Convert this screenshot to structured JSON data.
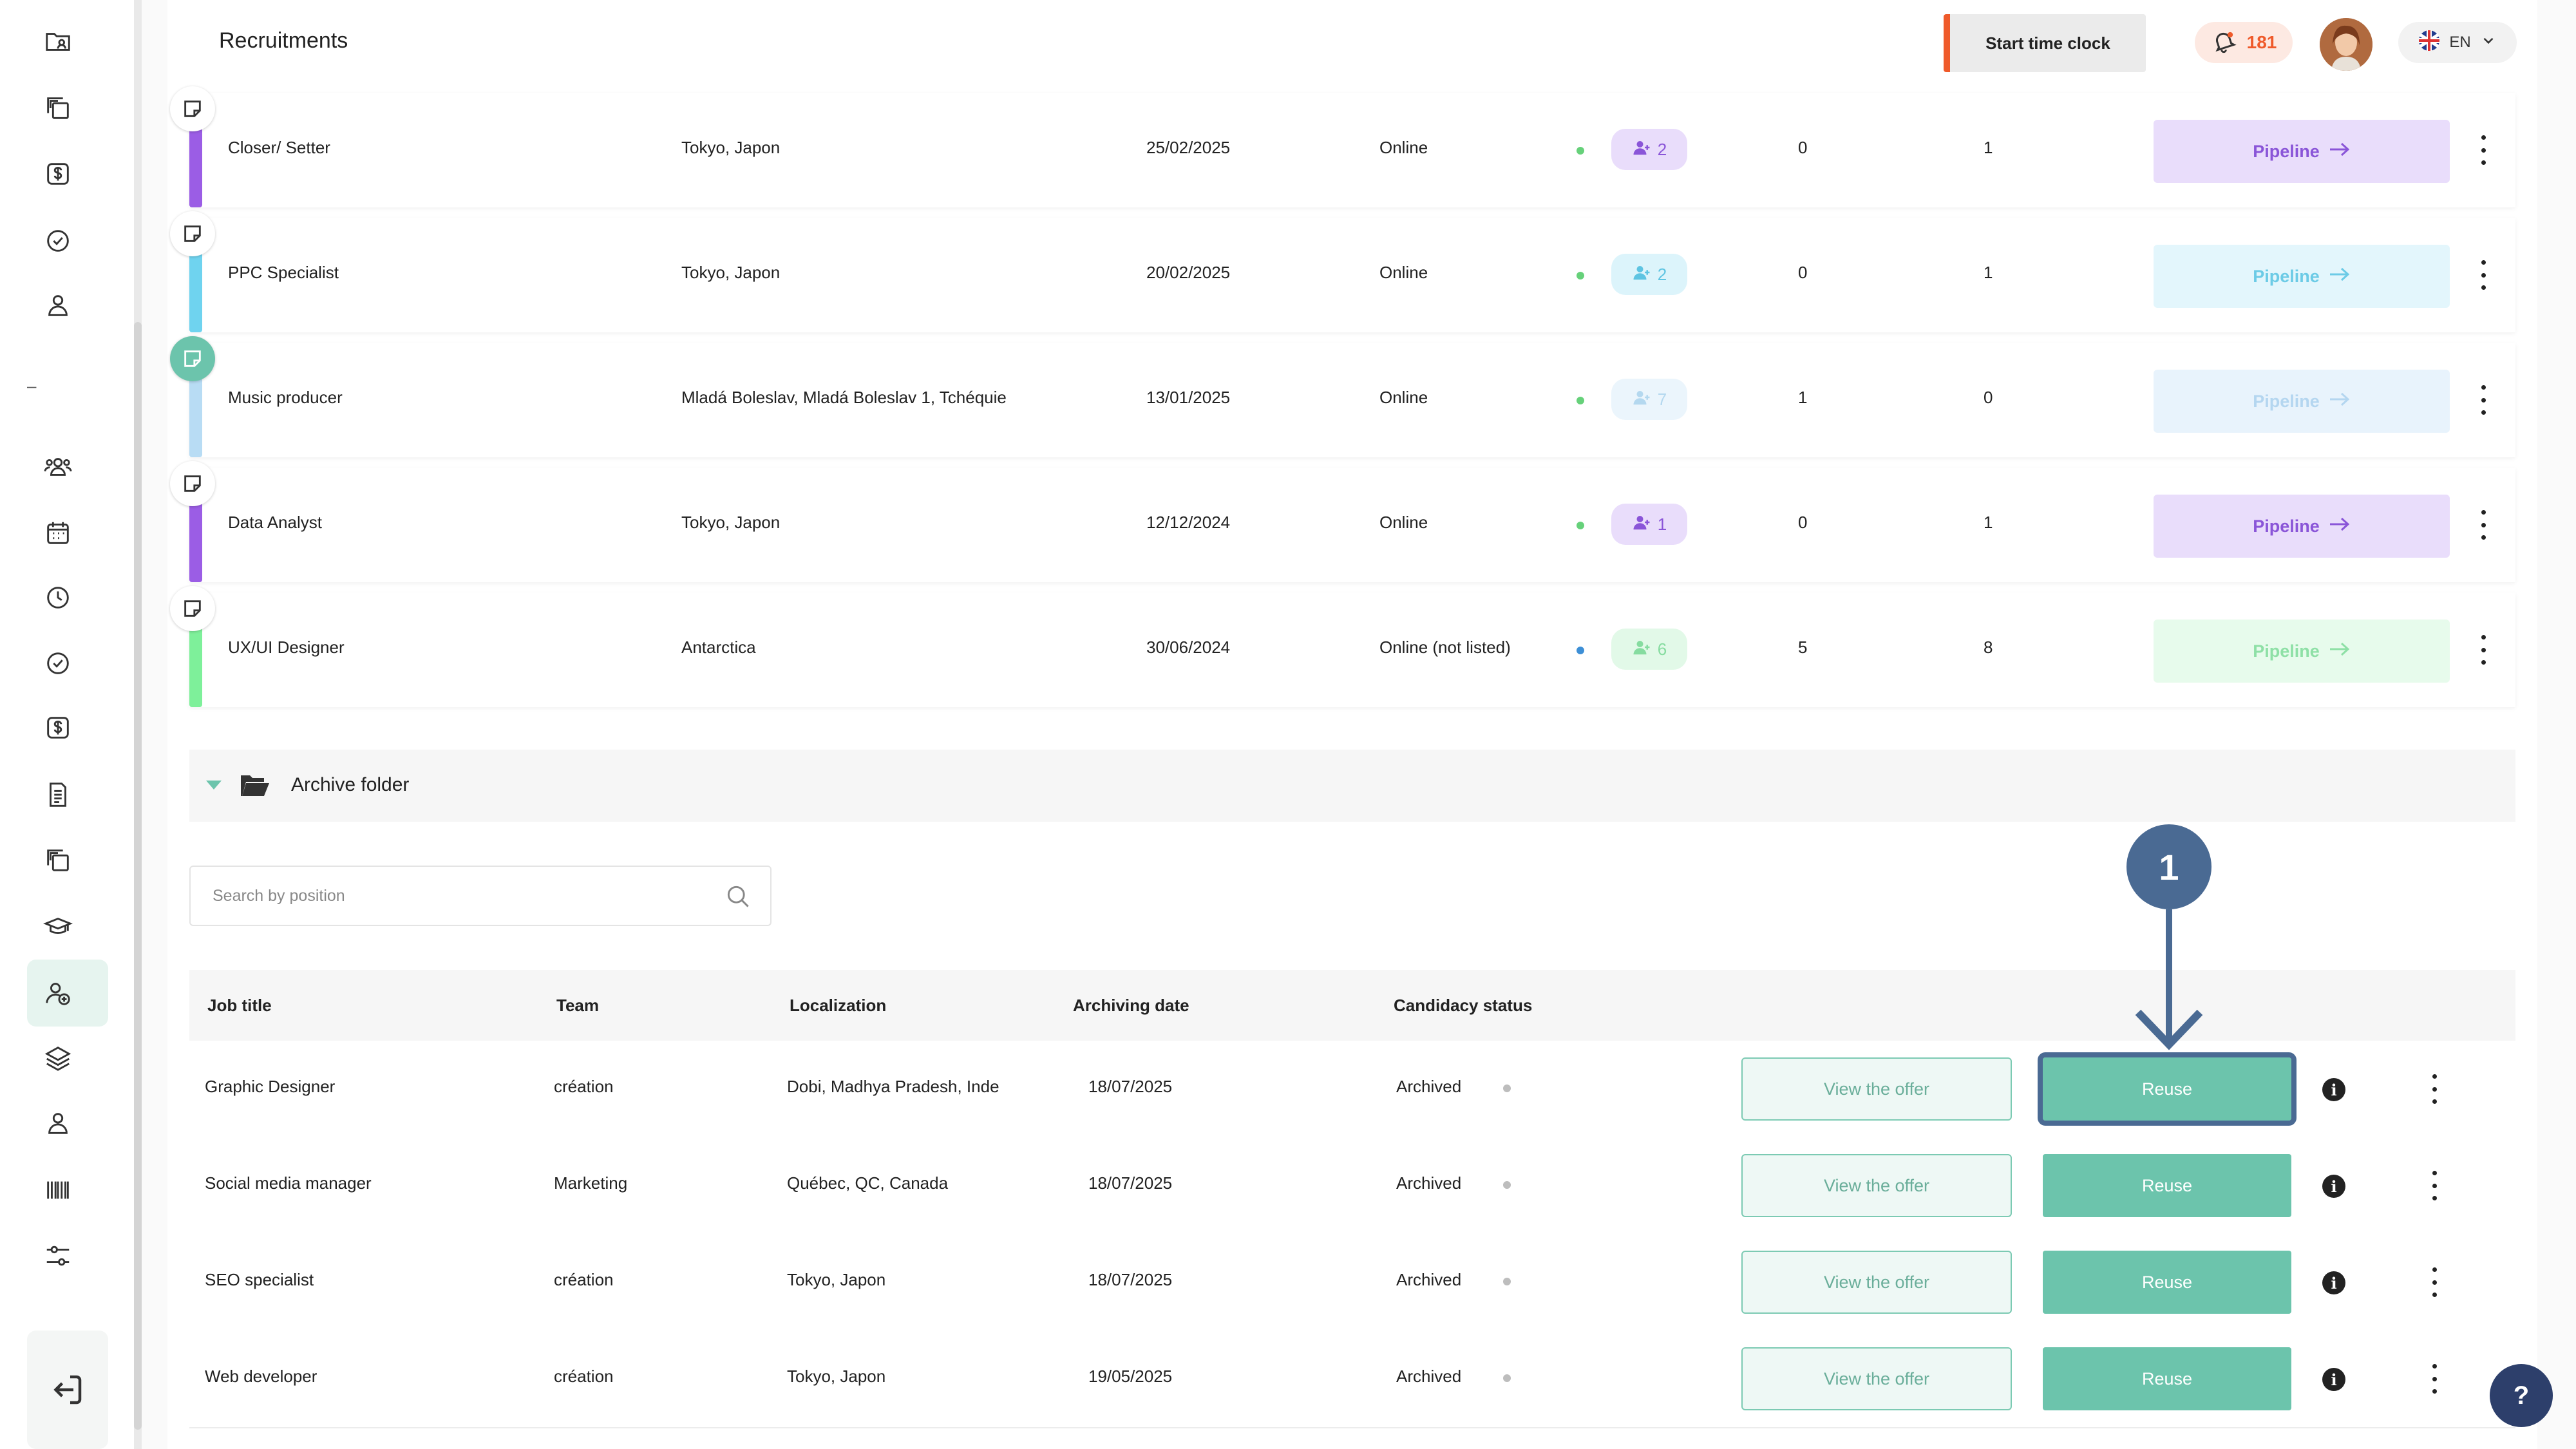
{
  "header": {
    "title": "Recruitments",
    "clock_button": "Start time clock",
    "notification_count": "181",
    "language": "EN"
  },
  "sidebar": {
    "items": [
      {
        "icon": "folder-user-icon"
      },
      {
        "icon": "copy-icon"
      },
      {
        "icon": "dollar-icon"
      },
      {
        "icon": "check-circle-icon"
      },
      {
        "icon": "user-icon"
      },
      {
        "icon": "users-icon"
      },
      {
        "icon": "calendar-icon"
      },
      {
        "icon": "clock-icon"
      },
      {
        "icon": "check-circle-icon"
      },
      {
        "icon": "dollar-icon"
      },
      {
        "icon": "document-icon"
      },
      {
        "icon": "copy-icon"
      },
      {
        "icon": "graduation-cap-icon"
      },
      {
        "icon": "user-plus-icon",
        "active": true
      },
      {
        "icon": "layers-icon"
      },
      {
        "icon": "user-icon"
      },
      {
        "icon": "barcode-icon"
      },
      {
        "icon": "sliders-icon"
      }
    ],
    "dash": "–",
    "logout_icon": "logout-icon"
  },
  "jobs": [
    {
      "title": "Closer/ Setter",
      "location": "Tokyo, Japon",
      "date": "25/02/2025",
      "status": "Online",
      "applicants": "2",
      "col1": "0",
      "col2": "1",
      "pipeline": "Pipeline",
      "color": "#9b5de5",
      "chip_bg": "#e9ddfb",
      "chip_fg": "#8a55d8",
      "pipe_bg": "#e9ddfb",
      "pipe_fg": "#8a55d8",
      "dot": "#66d17a",
      "note_active": false
    },
    {
      "title": "PPC Specialist",
      "location": "Tokyo, Japon",
      "date": "20/02/2025",
      "status": "Online",
      "applicants": "2",
      "col1": "0",
      "col2": "1",
      "pipeline": "Pipeline",
      "color": "#6fd3ef",
      "chip_bg": "#dcf4fb",
      "chip_fg": "#5ec4e2",
      "pipe_bg": "#e3f6fc",
      "pipe_fg": "#6ccbe6",
      "dot": "#66d17a",
      "note_active": false
    },
    {
      "title": "Music producer",
      "location": "Mladá Boleslav, Mladá Boleslav 1, Tchéquie",
      "date": "13/01/2025",
      "status": "Online",
      "applicants": "7",
      "col1": "1",
      "col2": "0",
      "pipeline": "Pipeline",
      "color": "#b8dcf4",
      "chip_bg": "#ebf5fc",
      "chip_fg": "#b4d8ef",
      "pipe_bg": "#e8f3fc",
      "pipe_fg": "#b4d6f0",
      "dot": "#66d17a",
      "note_active": true
    },
    {
      "title": "Data Analyst",
      "location": "Tokyo, Japon",
      "date": "12/12/2024",
      "status": "Online",
      "applicants": "1",
      "col1": "0",
      "col2": "1",
      "pipeline": "Pipeline",
      "color": "#9b5de5",
      "chip_bg": "#e9ddfb",
      "chip_fg": "#8a55d8",
      "pipe_bg": "#e9ddfb",
      "pipe_fg": "#8a55d8",
      "dot": "#66d17a",
      "note_active": false
    },
    {
      "title": "UX/UI Designer",
      "location": "Antarctica",
      "date": "30/06/2024",
      "status": "Online (not listed)",
      "applicants": "6",
      "col1": "5",
      "col2": "8",
      "pipeline": "Pipeline",
      "color": "#7ef09a",
      "chip_bg": "#e2f9e8",
      "chip_fg": "#86dca0",
      "pipe_bg": "#e7fbec",
      "pipe_fg": "#8ee0a6",
      "dot": "#3d8fd6",
      "note_active": false
    }
  ],
  "archive": {
    "folder_label": "Archive folder",
    "search_placeholder": "Search by position",
    "columns": [
      "Job title",
      "Team",
      "Localization",
      "Archiving date",
      "Candidacy status"
    ],
    "rows": [
      {
        "title": "Graphic Designer",
        "team": "création",
        "location": "Dobi, Madhya Pradesh, Inde",
        "date": "18/07/2025",
        "status": "Archived",
        "view": "View the offer",
        "reuse": "Reuse"
      },
      {
        "title": "Social media manager",
        "team": "Marketing",
        "location": "Québec, QC, Canada",
        "date": "18/07/2025",
        "status": "Archived",
        "view": "View the offer",
        "reuse": "Reuse"
      },
      {
        "title": "SEO specialist",
        "team": "création",
        "location": "Tokyo, Japon",
        "date": "18/07/2025",
        "status": "Archived",
        "view": "View the offer",
        "reuse": "Reuse"
      },
      {
        "title": "Web developer",
        "team": "création",
        "location": "Tokyo, Japon",
        "date": "19/05/2025",
        "status": "Archived",
        "view": "View the offer",
        "reuse": "Reuse"
      }
    ]
  },
  "annotation": {
    "step": "1"
  },
  "help": "?",
  "colors": {
    "accent": "#6cc4ac",
    "annotation": "#4a6a93",
    "clock_accent": "#ef5a2a"
  }
}
